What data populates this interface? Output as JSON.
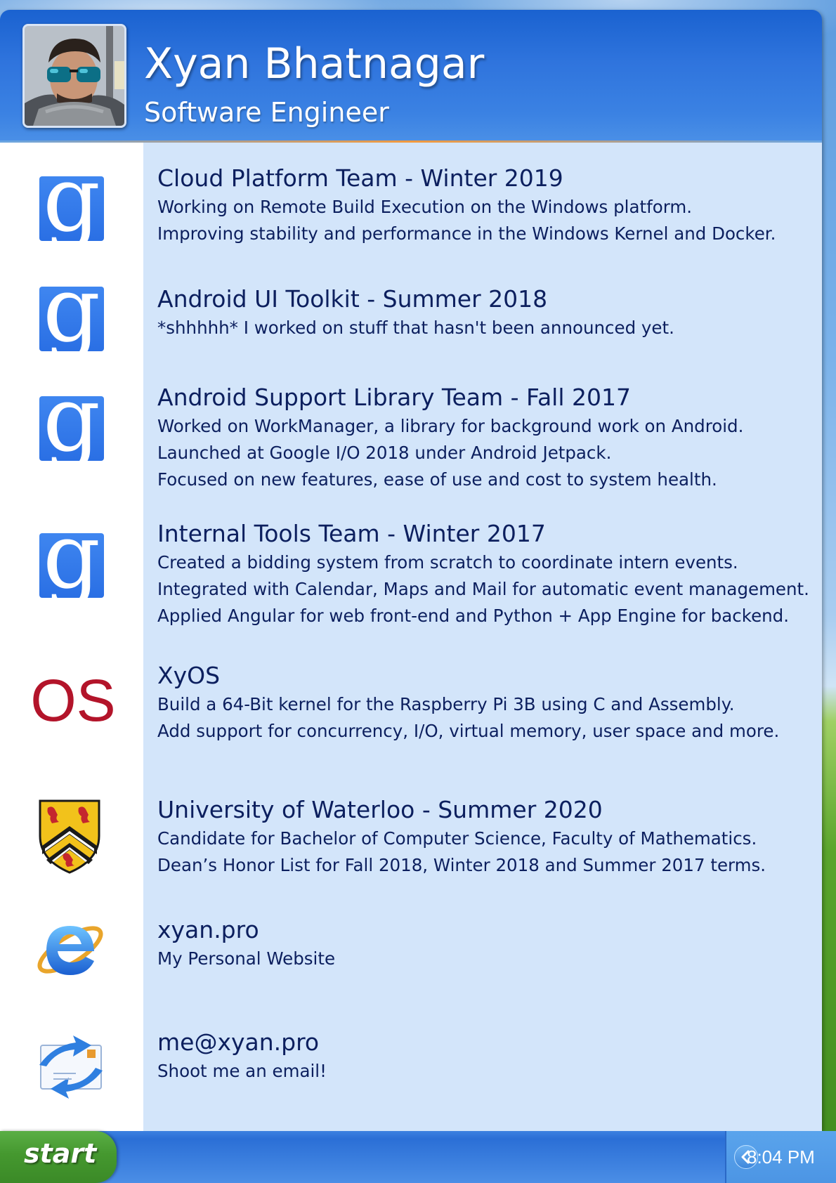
{
  "user": {
    "name": "Xyan Bhatnagar",
    "title": "Software Engineer"
  },
  "items": [
    {
      "icon": "google-icon",
      "title": "Cloud Platform Team - Winter 2019",
      "lines": [
        "Working on Remote Build Execution on the Windows platform.",
        "Improving stability and performance in the Windows Kernel and Docker."
      ]
    },
    {
      "icon": "google-icon",
      "title": "Android UI Toolkit - Summer 2018",
      "lines": [
        "*shhhhh* I worked on stuff that hasn't been announced yet."
      ]
    },
    {
      "icon": "google-icon",
      "title": "Android Support Library Team - Fall 2017",
      "lines": [
        "Worked on WorkManager, a library for background work on Android.",
        "Launched at Google I/O 2018 under Android Jetpack.",
        "Focused on new features, ease of use and cost to system health."
      ]
    },
    {
      "icon": "google-icon",
      "title": "Internal Tools Team - Winter 2017",
      "lines": [
        "Created a bidding system from scratch to coordinate intern events.",
        "Integrated with Calendar, Maps and Mail for automatic event management.",
        "Applied Angular for web front-end and Python + App Engine for backend."
      ]
    },
    {
      "icon": "os-logo-icon",
      "icon_text": "OS",
      "title": "XyOS",
      "lines": [
        "Build a 64-Bit kernel for the Raspberry Pi 3B using C and Assembly.",
        "Add support for concurrency, I/O, virtual memory, user space and more."
      ]
    },
    {
      "icon": "university-crest-icon",
      "title": "University of Waterloo - Summer 2020",
      "lines": [
        "Candidate for Bachelor of Computer Science, Faculty of Mathematics.",
        "Dean’s Honor List for Fall 2018, Winter 2018 and Summer 2017 terms."
      ]
    },
    {
      "icon": "internet-explorer-icon",
      "title": "xyan.pro",
      "lines": [
        "My Personal Website"
      ]
    },
    {
      "icon": "outlook-express-mail-icon",
      "title": "me@xyan.pro",
      "lines": [
        "Shoot me an email!"
      ]
    }
  ],
  "google_glyph": "g",
  "taskbar": {
    "start_label": "start",
    "clock": "8:04 PM",
    "tray_toggle_icon": "chevron-left-icon"
  },
  "colors": {
    "header_blue": "#2f74dd",
    "panel_light_blue": "#d3e5fa",
    "text_navy": "#0c1f5e",
    "start_green": "#45982f",
    "os_logo_red": "#b3142a",
    "google_tile_blue": "#2f77ea"
  }
}
